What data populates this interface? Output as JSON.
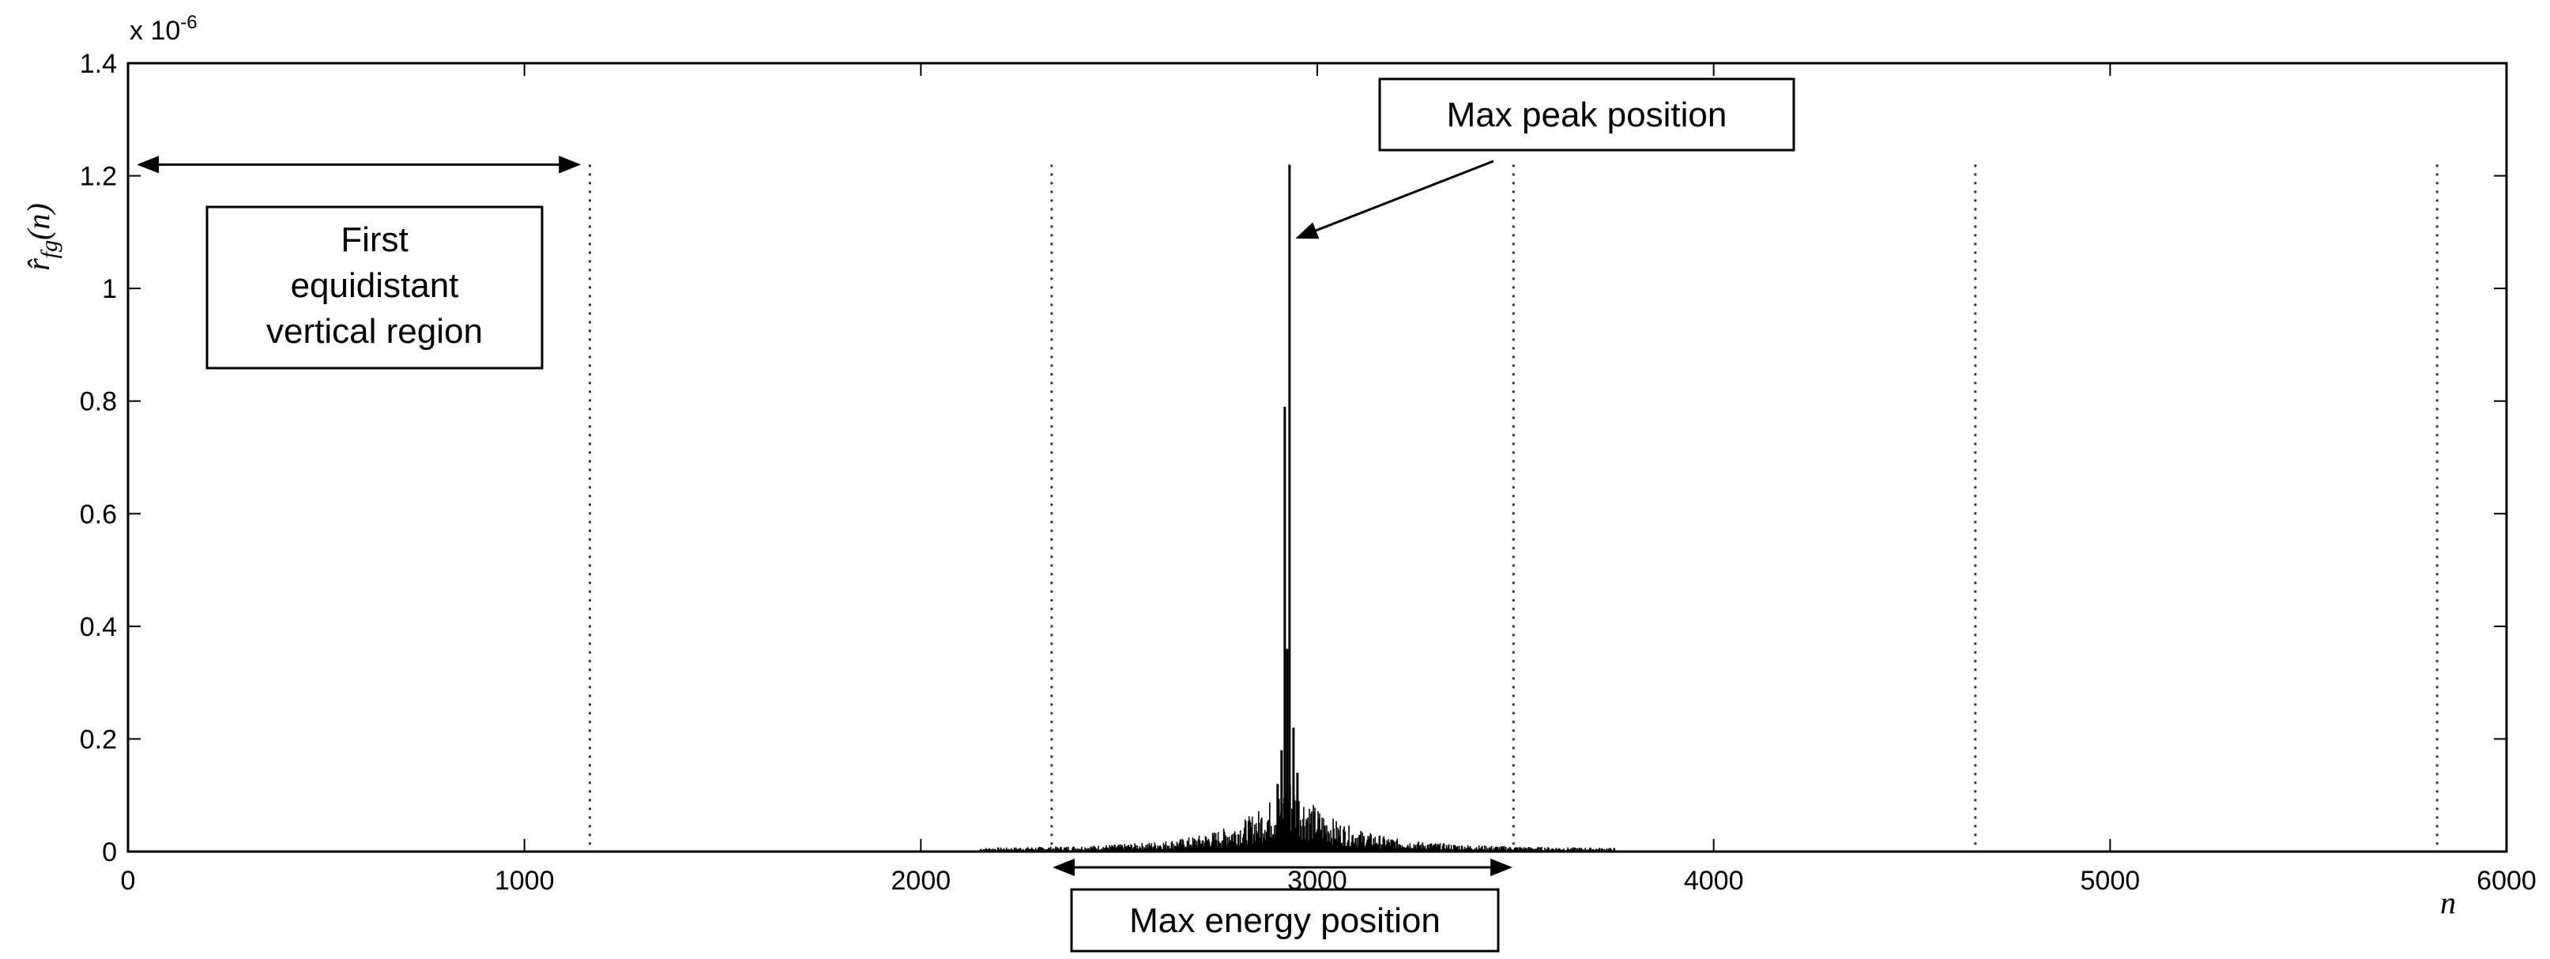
{
  "chart_data": {
    "type": "line",
    "title": "",
    "xlabel": "n",
    "ylabel": "r̂ fg(n)",
    "ylabel_main": "r̂",
    "ylabel_sub": "fg",
    "ylabel_arg": "(n)",
    "exponent_label": "x 10",
    "exponent_power": "-6",
    "xlim": [
      0,
      6000
    ],
    "ylim": [
      0,
      1.4
    ],
    "scale_factor": 1e-06,
    "grid": false,
    "legend": "none",
    "x_ticks": [
      0,
      1000,
      2000,
      3000,
      4000,
      5000,
      6000
    ],
    "x_tick_labels": [
      "0",
      "1000",
      "2000",
      "3000",
      "4000",
      "5000",
      "6000"
    ],
    "y_ticks": [
      0,
      0.2,
      0.4,
      0.6,
      0.8,
      1.0,
      1.2,
      1.4
    ],
    "y_tick_labels": [
      "0",
      "0.2",
      "0.4",
      "0.6",
      "0.8",
      "1",
      "1.2",
      "1.4"
    ],
    "series": [
      {
        "color": "#000000",
        "peak_x": 2930,
        "peak_y": 1.22,
        "secondary_peaks": [
          {
            "x": 2918,
            "y": 0.79
          },
          {
            "x": 2924,
            "y": 0.36
          },
          {
            "x": 2910,
            "y": 0.18
          },
          {
            "x": 2940,
            "y": 0.22
          },
          {
            "x": 2950,
            "y": 0.14
          },
          {
            "x": 2900,
            "y": 0.12
          }
        ],
        "envelope_range": [
          2150,
          3750
        ]
      }
    ],
    "vertical_dividers": [
      1165,
      2330,
      3495,
      4660,
      5825
    ],
    "divider_top": 1.22,
    "annotations": {
      "first_region": {
        "lines": [
          "First",
          "equidistant",
          "vertical region"
        ],
        "arrow_from_x": 0,
        "arrow_to_x": 1165,
        "arrow_y": 1.22
      },
      "max_peak": {
        "text": "Max peak position",
        "arrow_target_x": 2930,
        "arrow_target_y": 1.09
      },
      "max_energy": {
        "text": "Max energy position",
        "arrow_from_x": 2330,
        "arrow_to_x": 3495
      }
    }
  }
}
